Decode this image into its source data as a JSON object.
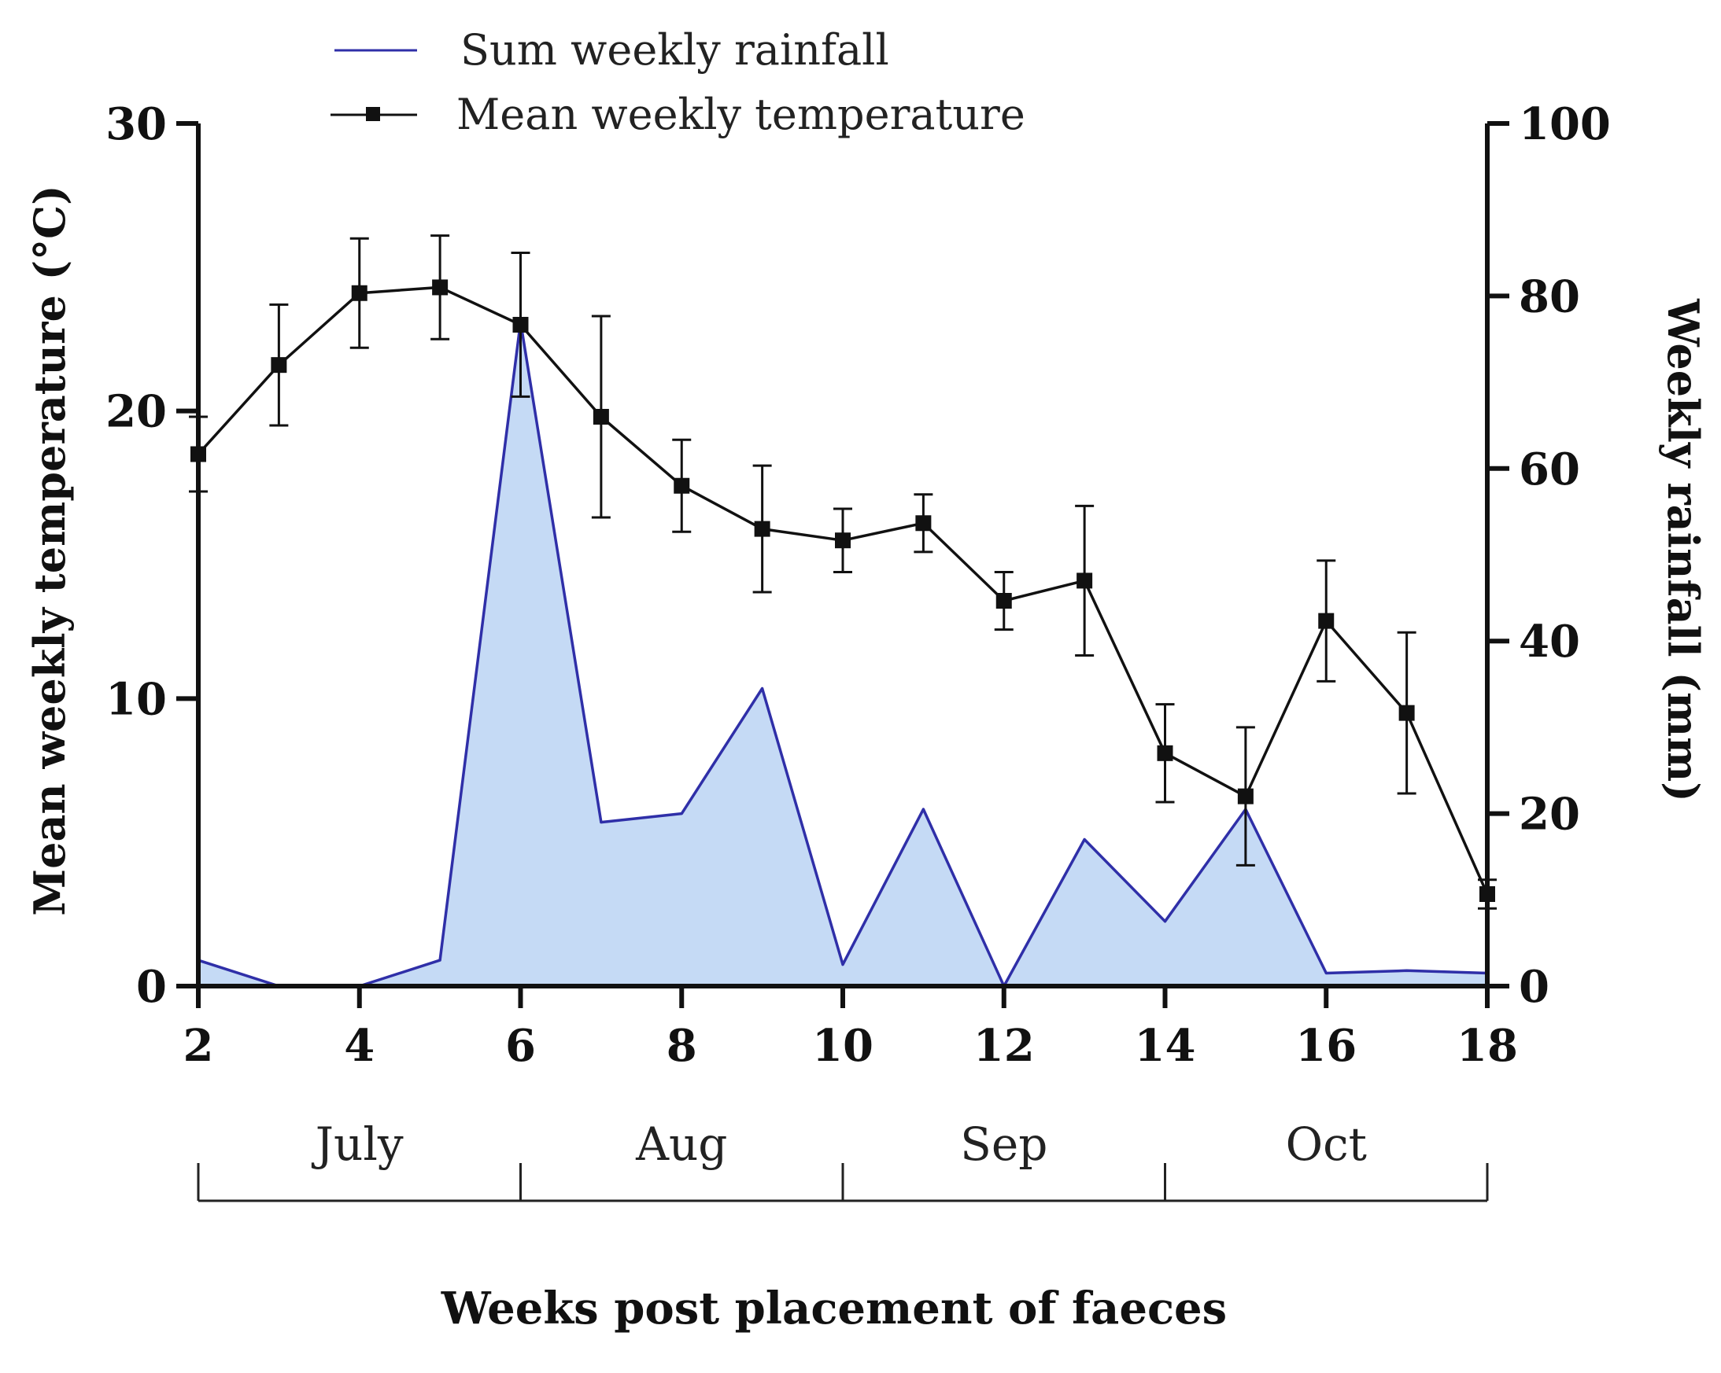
{
  "chart_data": {
    "type": "line",
    "xlabel": "Weeks post placement of faeces",
    "ylabel_left": "Mean weekly temperature (°C)",
    "ylabel_right": "Weekly rainfall (mm)",
    "xlim": [
      2,
      18
    ],
    "ylim_left": [
      0,
      30
    ],
    "ylim_right": [
      0,
      100
    ],
    "x_ticks": [
      "2",
      "4",
      "6",
      "8",
      "10",
      "12",
      "14",
      "16",
      "18"
    ],
    "y_left_ticks": [
      "0",
      "10",
      "20",
      "30"
    ],
    "y_right_ticks": [
      "0",
      "20",
      "40",
      "60",
      "80",
      "100"
    ],
    "legend": [
      {
        "label": "Sum weekly rainfall",
        "color": "#2f2fa8",
        "marker": "none"
      },
      {
        "label": "Mean weekly temperature",
        "color": "#111111",
        "marker": "square"
      }
    ],
    "months": [
      {
        "label": "July",
        "from": 2,
        "to": 6
      },
      {
        "label": "Aug",
        "from": 6,
        "to": 10
      },
      {
        "label": "Sep",
        "from": 10,
        "to": 14
      },
      {
        "label": "Oct",
        "from": 14,
        "to": 18
      }
    ],
    "series": [
      {
        "name": "Sum weekly rainfall",
        "axis": "right",
        "color": "#2f2fa8",
        "fill": "#c5daf5",
        "x": [
          2,
          3,
          4,
          5,
          6,
          7,
          8,
          9,
          10,
          11,
          12,
          13,
          14,
          15,
          16,
          17,
          18
        ],
        "y": [
          3,
          0,
          0,
          3,
          77,
          19,
          20,
          34.5,
          2.5,
          20.5,
          0,
          17,
          7.5,
          20.5,
          1.5,
          1.8,
          1.5
        ]
      },
      {
        "name": "Mean weekly temperature",
        "axis": "left",
        "color": "#111111",
        "x": [
          2,
          3,
          4,
          5,
          6,
          7,
          8,
          9,
          10,
          11,
          12,
          13,
          14,
          15,
          16,
          17,
          18
        ],
        "y": [
          18.5,
          21.6,
          24.1,
          24.3,
          23.0,
          19.8,
          17.4,
          15.9,
          15.5,
          16.1,
          13.4,
          14.1,
          8.1,
          6.6,
          12.7,
          9.5,
          3.2
        ],
        "error": [
          1.3,
          2.1,
          1.9,
          1.8,
          2.5,
          3.5,
          1.6,
          2.2,
          1.1,
          1.0,
          1.0,
          2.6,
          1.7,
          2.4,
          2.1,
          2.8,
          0.5
        ]
      }
    ]
  }
}
